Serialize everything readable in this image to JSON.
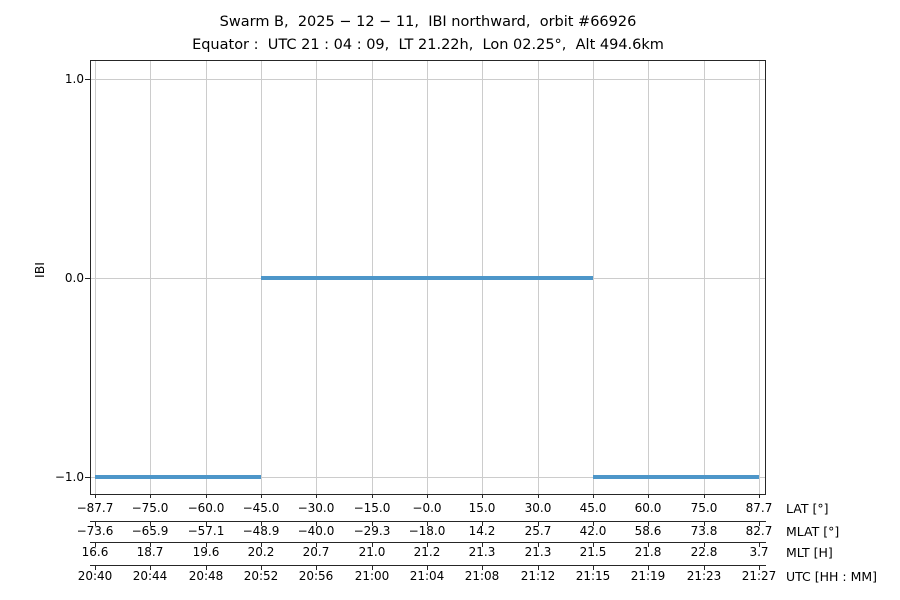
{
  "chart_data": {
    "type": "line",
    "title": "Swarm B,  2025 − 12 − 11,  IBI northward,  orbit #66926",
    "subtitle": "Equator :  UTC 21 : 04 : 09,  LT 21.22h,  Lon 02.25°,  Alt 494.6km",
    "ylabel": "IBI",
    "yticks": [
      1.0,
      0.0,
      -1.0
    ],
    "ytick_labels": [
      "1.0",
      "0.0",
      "−1.0"
    ],
    "ylim": [
      -1.085,
      1.09
    ],
    "grid": true,
    "legend": "none",
    "line_color": "#4d96c9",
    "grid_color": "#cccccc",
    "axis_color": "#262626",
    "series": [
      {
        "name": "IBI northward",
        "segments": [
          {
            "y": -1.0,
            "lat_from": -87.7,
            "lat_to": -45.0
          },
          {
            "y": 0.0,
            "lat_from": -45.0,
            "lat_to": 45.0
          },
          {
            "y": -1.0,
            "lat_from": 45.0,
            "lat_to": 87.7
          }
        ]
      }
    ],
    "x_rows": [
      {
        "label": "LAT [°]",
        "ticks": [
          "−87.7",
          "−75.0",
          "−60.0",
          "−45.0",
          "−30.0",
          "−15.0",
          "−0.0",
          "15.0",
          "30.0",
          "45.0",
          "60.0",
          "75.0",
          "87.7"
        ]
      },
      {
        "label": "MLAT [°]",
        "ticks": [
          "−73.6",
          "−65.9",
          "−57.1",
          "−48.9",
          "−40.0",
          "−29.3",
          "−18.0",
          "14.2",
          "25.7",
          "42.0",
          "58.6",
          "73.8",
          "82.7"
        ]
      },
      {
        "label": "MLT [H]",
        "ticks": [
          "16.6",
          "18.7",
          "19.6",
          "20.2",
          "20.7",
          "21.0",
          "21.2",
          "21.3",
          "21.3",
          "21.5",
          "21.8",
          "22.8",
          "3.7"
        ]
      },
      {
        "label": "UTC [HH : MM]",
        "ticks": [
          "20:40",
          "20:44",
          "20:48",
          "20:52",
          "20:56",
          "21:00",
          "21:04",
          "21:08",
          "21:12",
          "21:15",
          "21:19",
          "21:23",
          "21:27"
        ]
      }
    ]
  }
}
